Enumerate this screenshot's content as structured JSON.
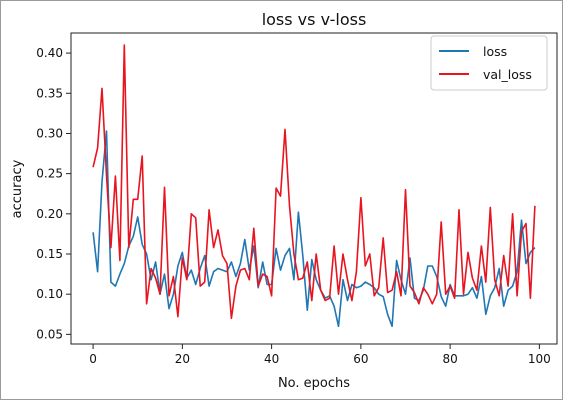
{
  "chart_data": {
    "type": "line",
    "title": "loss vs v-loss",
    "xlabel": "No. epochs",
    "ylabel": "accuracy",
    "xlim": [
      -4.95,
      103.95
    ],
    "ylim": [
      0.038,
      0.425
    ],
    "xticks": [
      0,
      20,
      40,
      60,
      80,
      100
    ],
    "yticks": [
      0.05,
      0.1,
      0.15,
      0.2,
      0.25,
      0.3,
      0.35,
      0.4
    ],
    "ytick_labels": [
      "0.05",
      "0.10",
      "0.15",
      "0.20",
      "0.25",
      "0.30",
      "0.35",
      "0.40"
    ],
    "grid": false,
    "legend_position": "top-right",
    "series": [
      {
        "name": "loss",
        "color": "#1f77b4",
        "values": [
          0.177,
          0.128,
          0.24,
          0.303,
          0.115,
          0.11,
          0.125,
          0.138,
          0.16,
          0.172,
          0.196,
          0.162,
          0.15,
          0.118,
          0.14,
          0.1,
          0.125,
          0.082,
          0.1,
          0.135,
          0.152,
          0.12,
          0.13,
          0.112,
          0.132,
          0.148,
          0.11,
          0.128,
          0.132,
          0.13,
          0.128,
          0.14,
          0.122,
          0.138,
          0.168,
          0.13,
          0.16,
          0.108,
          0.14,
          0.112,
          0.112,
          0.157,
          0.13,
          0.148,
          0.157,
          0.118,
          0.202,
          0.148,
          0.08,
          0.143,
          0.118,
          0.105,
          0.095,
          0.098,
          0.085,
          0.06,
          0.118,
          0.092,
          0.112,
          0.108,
          0.11,
          0.115,
          0.112,
          0.108,
          0.1,
          0.097,
          0.075,
          0.06,
          0.142,
          0.118,
          0.1,
          0.145,
          0.095,
          0.092,
          0.105,
          0.135,
          0.135,
          0.122,
          0.097,
          0.085,
          0.112,
          0.098,
          0.098,
          0.098,
          0.1,
          0.108,
          0.095,
          0.122,
          0.075,
          0.098,
          0.108,
          0.132,
          0.085,
          0.105,
          0.11,
          0.128,
          0.192,
          0.138,
          0.152,
          0.158
        ]
      },
      {
        "name": "val_loss",
        "color": "#e8141f",
        "values": [
          0.258,
          0.282,
          0.356,
          0.248,
          0.158,
          0.247,
          0.142,
          0.41,
          0.158,
          0.218,
          0.218,
          0.272,
          0.088,
          0.132,
          0.12,
          0.1,
          0.233,
          0.098,
          0.122,
          0.072,
          0.145,
          0.118,
          0.2,
          0.195,
          0.11,
          0.115,
          0.205,
          0.158,
          0.18,
          0.148,
          0.138,
          0.07,
          0.11,
          0.13,
          0.132,
          0.118,
          0.182,
          0.11,
          0.125,
          0.122,
          0.098,
          0.232,
          0.222,
          0.305,
          0.21,
          0.15,
          0.118,
          0.12,
          0.14,
          0.092,
          0.15,
          0.105,
          0.092,
          0.095,
          0.16,
          0.1,
          0.15,
          0.118,
          0.092,
          0.128,
          0.22,
          0.135,
          0.15,
          0.098,
          0.108,
          0.17,
          0.102,
          0.105,
          0.128,
          0.098,
          0.23,
          0.11,
          0.102,
          0.088,
          0.108,
          0.1,
          0.088,
          0.1,
          0.19,
          0.1,
          0.11,
          0.095,
          0.205,
          0.1,
          0.152,
          0.12,
          0.105,
          0.16,
          0.115,
          0.208,
          0.118,
          0.098,
          0.148,
          0.11,
          0.2,
          0.098,
          0.178,
          0.188,
          0.095,
          0.21
        ]
      }
    ]
  }
}
